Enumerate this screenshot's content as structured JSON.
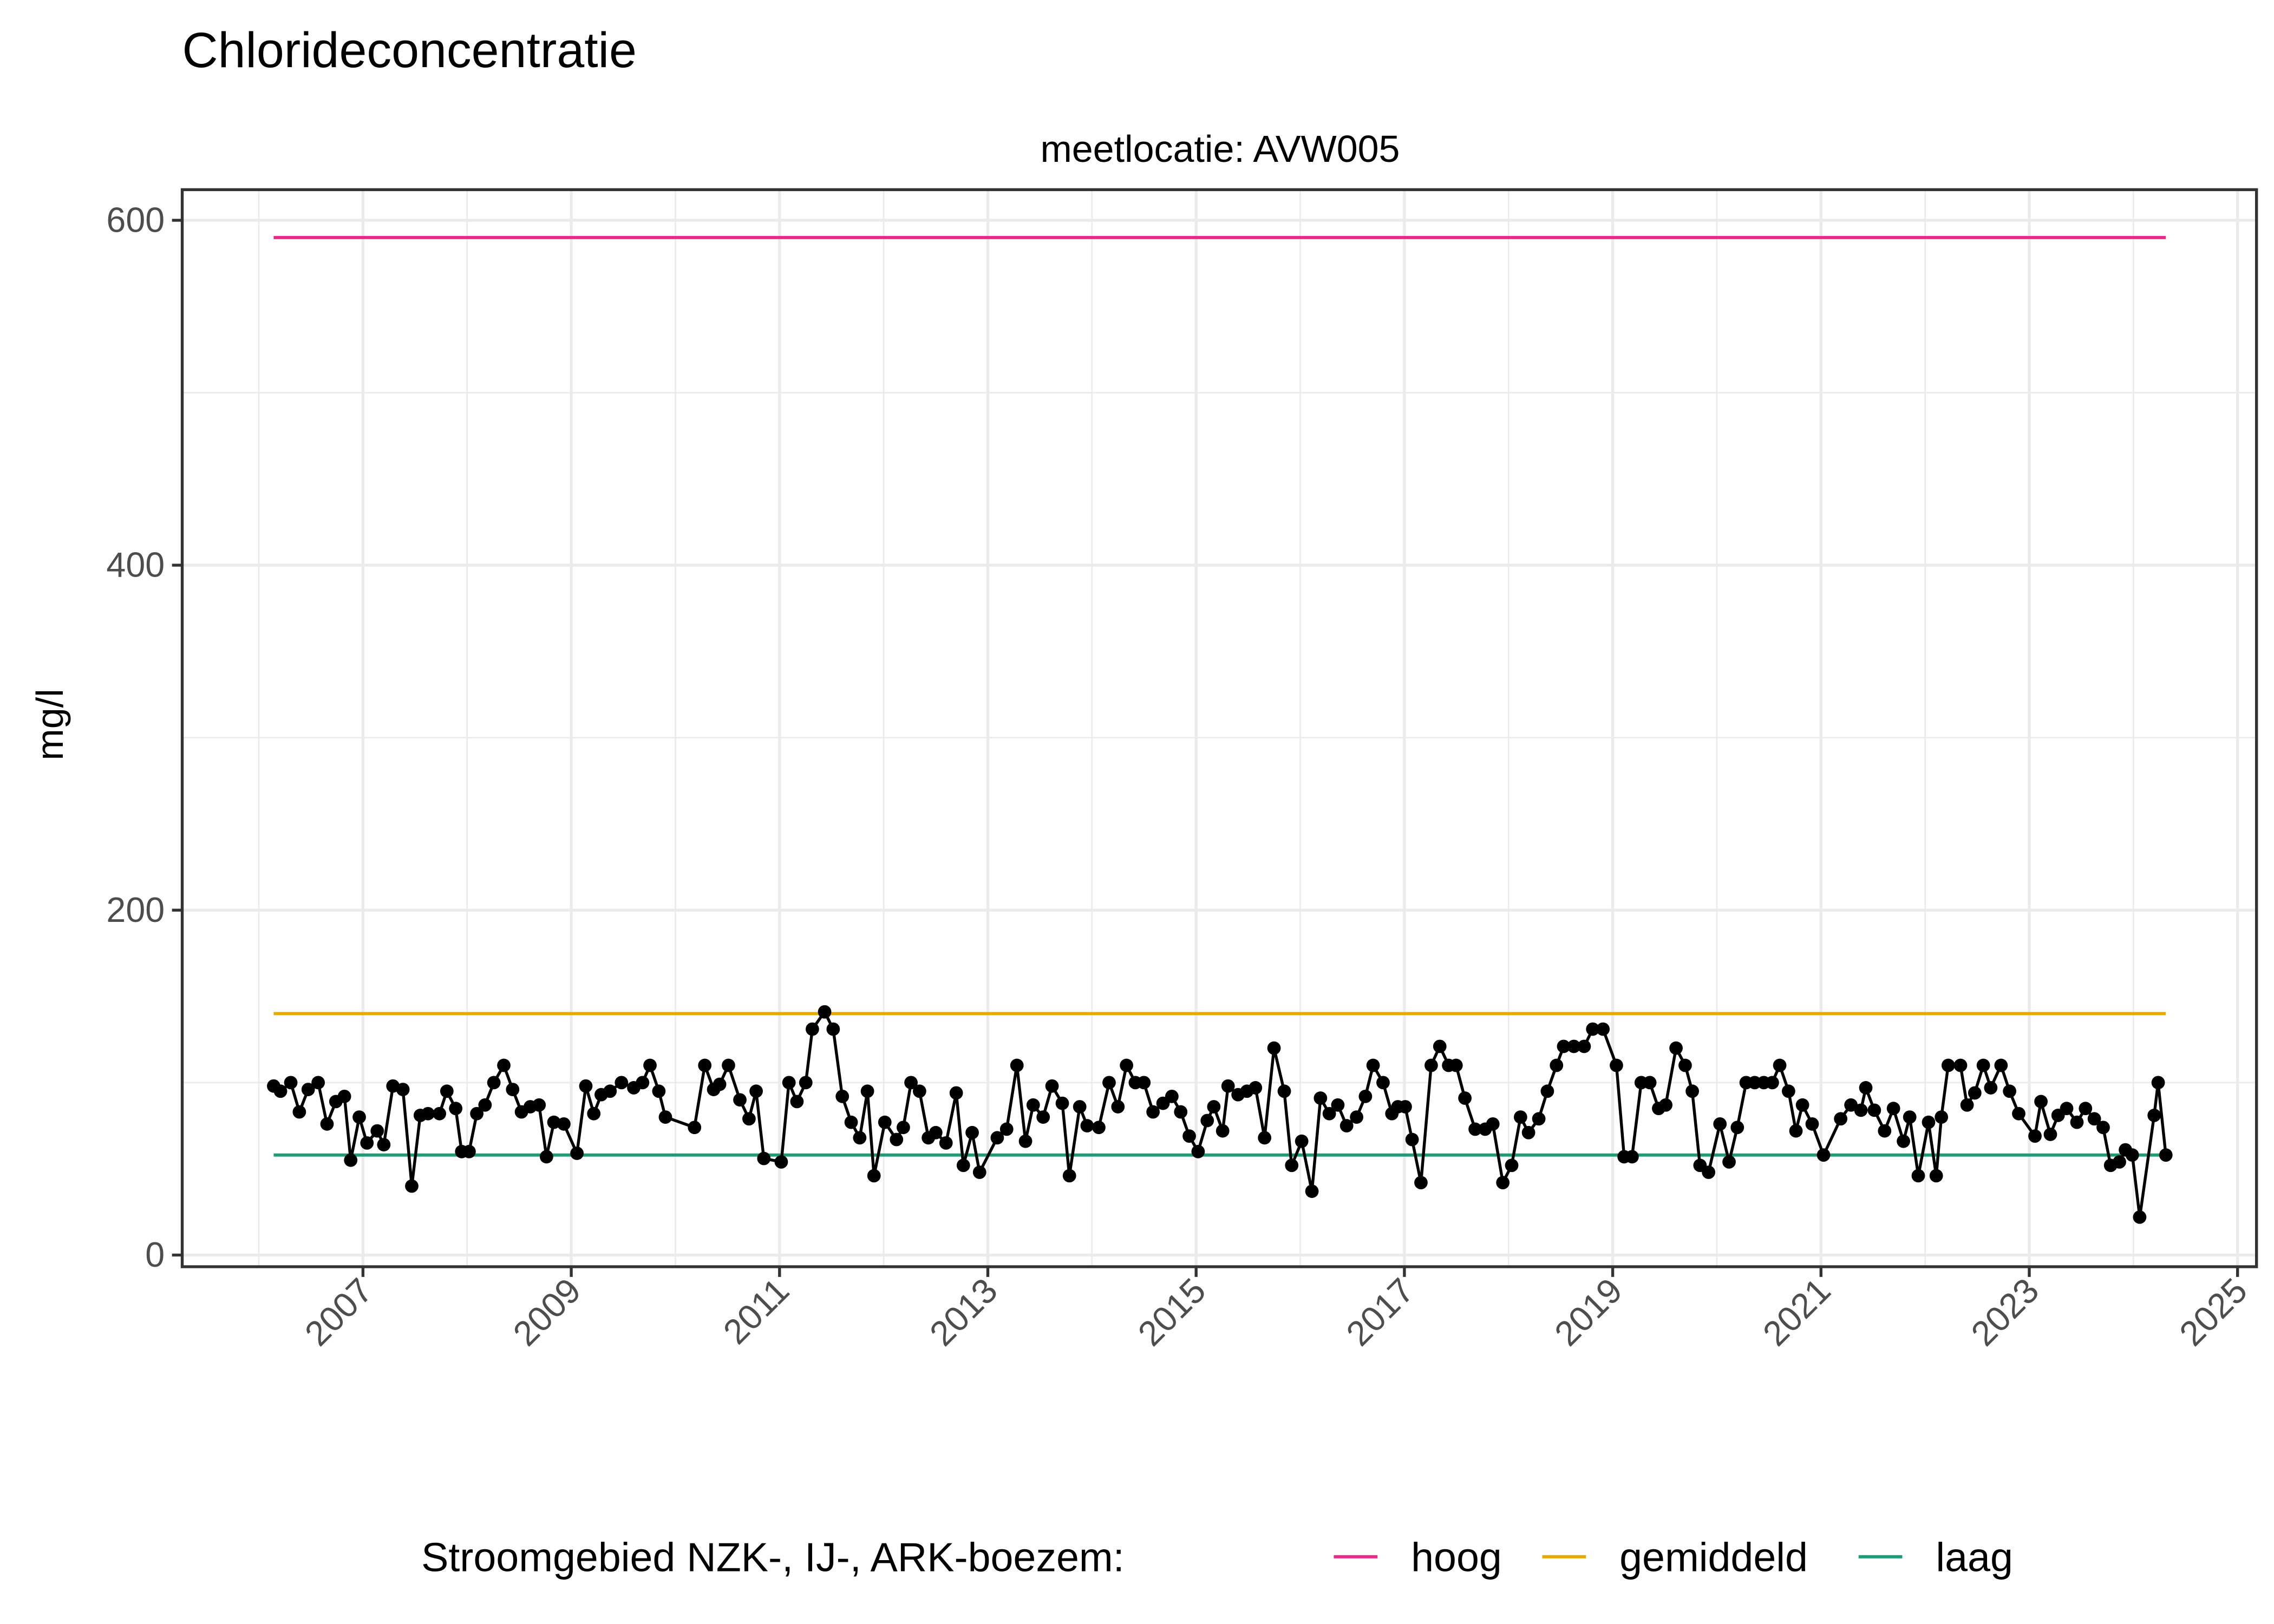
{
  "chart_data": {
    "type": "line",
    "title": "Chlorideconcentratie",
    "facet_label": "meetlocatie: AVW005",
    "xlabel": "",
    "ylabel": "mg/l",
    "ylim": [
      0,
      600
    ],
    "xlim": [
      "2006-01-01",
      "2025-06-01"
    ],
    "yticks": [
      "0",
      "200",
      "400",
      "600"
    ],
    "xticks": [
      "2007",
      "2009",
      "2011",
      "2013",
      "2015",
      "2017",
      "2019",
      "2021",
      "2023",
      "2025"
    ],
    "grid": true,
    "legend_position": "bottom",
    "legend_title": "Stroomgebied NZK-, IJ-, ARK-boezem:",
    "reference_lines": [
      {
        "name": "hoog",
        "value": 590,
        "color": "#e7298a"
      },
      {
        "name": "gemiddeld",
        "value": 140,
        "color": "#e6ab02"
      },
      {
        "name": "laag",
        "value": 58,
        "color": "#1b9e77"
      }
    ],
    "series_color": "#000000",
    "points": [
      [
        "2006-02-22",
        98
      ],
      [
        "2006-03-18",
        95
      ],
      [
        "2006-04-23",
        100
      ],
      [
        "2006-05-23",
        83
      ],
      [
        "2006-06-23",
        96
      ],
      [
        "2006-07-28",
        100
      ],
      [
        "2006-08-28",
        76
      ],
      [
        "2006-09-28",
        89
      ],
      [
        "2006-10-28",
        92
      ],
      [
        "2006-11-19",
        55
      ],
      [
        "2006-12-19",
        80
      ],
      [
        "2007-01-15",
        65
      ],
      [
        "2007-02-20",
        72
      ],
      [
        "2007-03-15",
        64
      ],
      [
        "2007-04-16",
        98
      ],
      [
        "2007-05-21",
        96
      ],
      [
        "2007-06-21",
        40
      ],
      [
        "2007-07-21",
        81
      ],
      [
        "2007-08-17",
        82
      ],
      [
        "2007-09-26",
        82
      ],
      [
        "2007-10-22",
        95
      ],
      [
        "2007-11-22",
        85
      ],
      [
        "2007-12-13",
        60
      ],
      [
        "2008-01-08",
        60
      ],
      [
        "2008-02-04",
        82
      ],
      [
        "2008-03-04",
        87
      ],
      [
        "2008-04-04",
        100
      ],
      [
        "2008-05-09",
        110
      ],
      [
        "2008-06-09",
        96
      ],
      [
        "2008-07-10",
        83
      ],
      [
        "2008-08-10",
        86
      ],
      [
        "2008-09-10",
        87
      ],
      [
        "2008-10-06",
        57
      ],
      [
        "2008-11-01",
        77
      ],
      [
        "2008-12-06",
        76
      ],
      [
        "2009-01-21",
        59
      ],
      [
        "2009-02-21",
        98
      ],
      [
        "2009-03-21",
        82
      ],
      [
        "2009-04-16",
        93
      ],
      [
        "2009-05-17",
        95
      ],
      [
        "2009-06-26",
        100
      ],
      [
        "2009-08-08",
        97
      ],
      [
        "2009-09-08",
        100
      ],
      [
        "2009-10-04",
        110
      ],
      [
        "2009-11-04",
        95
      ],
      [
        "2009-11-27",
        80
      ],
      [
        "2010-03-09",
        74
      ],
      [
        "2010-04-14",
        110
      ],
      [
        "2010-05-15",
        96
      ],
      [
        "2010-06-05",
        99
      ],
      [
        "2010-07-06",
        110
      ],
      [
        "2010-08-15",
        90
      ],
      [
        "2010-09-16",
        79
      ],
      [
        "2010-10-11",
        95
      ],
      [
        "2010-11-07",
        56
      ],
      [
        "2011-01-07",
        54
      ],
      [
        "2011-02-03",
        100
      ],
      [
        "2011-03-03",
        89
      ],
      [
        "2011-04-03",
        100
      ],
      [
        "2011-04-26",
        131
      ],
      [
        "2011-06-08",
        141
      ],
      [
        "2011-07-08",
        131
      ],
      [
        "2011-08-09",
        92
      ],
      [
        "2011-09-09",
        77
      ],
      [
        "2011-10-09",
        68
      ],
      [
        "2011-11-05",
        95
      ],
      [
        "2011-11-28",
        46
      ],
      [
        "2012-01-05",
        77
      ],
      [
        "2012-02-15",
        67
      ],
      [
        "2012-03-10",
        74
      ],
      [
        "2012-04-06",
        100
      ],
      [
        "2012-05-06",
        95
      ],
      [
        "2012-06-06",
        68
      ],
      [
        "2012-07-02",
        71
      ],
      [
        "2012-08-07",
        65
      ],
      [
        "2012-09-12",
        94
      ],
      [
        "2012-10-07",
        52
      ],
      [
        "2012-11-07",
        71
      ],
      [
        "2012-12-03",
        48
      ],
      [
        "2013-02-03",
        68
      ],
      [
        "2013-03-08",
        73
      ],
      [
        "2013-04-13",
        110
      ],
      [
        "2013-05-13",
        66
      ],
      [
        "2013-06-09",
        87
      ],
      [
        "2013-07-14",
        80
      ],
      [
        "2013-08-14",
        98
      ],
      [
        "2013-09-19",
        88
      ],
      [
        "2013-10-14",
        46
      ],
      [
        "2013-11-19",
        86
      ],
      [
        "2013-12-15",
        75
      ],
      [
        "2014-01-25",
        74
      ],
      [
        "2014-03-02",
        100
      ],
      [
        "2014-04-02",
        86
      ],
      [
        "2014-05-02",
        110
      ],
      [
        "2014-06-02",
        100
      ],
      [
        "2014-07-02",
        100
      ],
      [
        "2014-08-03",
        83
      ],
      [
        "2014-09-07",
        88
      ],
      [
        "2014-10-08",
        92
      ],
      [
        "2014-11-08",
        83
      ],
      [
        "2014-12-08",
        69
      ],
      [
        "2015-01-08",
        60
      ],
      [
        "2015-02-09",
        78
      ],
      [
        "2015-03-04",
        86
      ],
      [
        "2015-04-04",
        72
      ],
      [
        "2015-04-23",
        98
      ],
      [
        "2015-05-28",
        93
      ],
      [
        "2015-06-28",
        95
      ],
      [
        "2015-07-28",
        97
      ],
      [
        "2015-08-29",
        68
      ],
      [
        "2015-10-01",
        120
      ],
      [
        "2015-11-06",
        95
      ],
      [
        "2015-12-02",
        52
      ],
      [
        "2016-01-06",
        66
      ],
      [
        "2016-02-11",
        37
      ],
      [
        "2016-03-12",
        91
      ],
      [
        "2016-04-12",
        82
      ],
      [
        "2016-05-12",
        87
      ],
      [
        "2016-06-12",
        75
      ],
      [
        "2016-07-17",
        80
      ],
      [
        "2016-08-17",
        92
      ],
      [
        "2016-09-13",
        110
      ],
      [
        "2016-10-18",
        100
      ],
      [
        "2016-11-18",
        82
      ],
      [
        "2016-12-09",
        86
      ],
      [
        "2017-01-04",
        86
      ],
      [
        "2017-01-28",
        67
      ],
      [
        "2017-02-28",
        42
      ],
      [
        "2017-04-05",
        110
      ],
      [
        "2017-05-05",
        121
      ],
      [
        "2017-06-05",
        110
      ],
      [
        "2017-07-01",
        110
      ],
      [
        "2017-08-01",
        91
      ],
      [
        "2017-09-06",
        73
      ],
      [
        "2017-10-11",
        73
      ],
      [
        "2017-11-07",
        76
      ],
      [
        "2017-12-12",
        42
      ],
      [
        "2018-01-12",
        52
      ],
      [
        "2018-02-12",
        80
      ],
      [
        "2018-03-12",
        71
      ],
      [
        "2018-04-17",
        79
      ],
      [
        "2018-05-17",
        95
      ],
      [
        "2018-06-18",
        110
      ],
      [
        "2018-07-13",
        121
      ],
      [
        "2018-08-18",
        121
      ],
      [
        "2018-09-23",
        121
      ],
      [
        "2018-10-23",
        131
      ],
      [
        "2018-11-28",
        131
      ],
      [
        "2019-01-14",
        110
      ],
      [
        "2019-02-10",
        57
      ],
      [
        "2019-03-10",
        57
      ],
      [
        "2019-04-11",
        100
      ],
      [
        "2019-05-11",
        100
      ],
      [
        "2019-06-11",
        85
      ],
      [
        "2019-07-06",
        87
      ],
      [
        "2019-08-11",
        120
      ],
      [
        "2019-09-12",
        110
      ],
      [
        "2019-10-07",
        95
      ],
      [
        "2019-11-03",
        52
      ],
      [
        "2019-12-03",
        48
      ],
      [
        "2020-01-12",
        76
      ],
      [
        "2020-02-13",
        54
      ],
      [
        "2020-03-13",
        74
      ],
      [
        "2020-04-13",
        100
      ],
      [
        "2020-05-13",
        100
      ],
      [
        "2020-06-14",
        100
      ],
      [
        "2020-07-14",
        100
      ],
      [
        "2020-08-09",
        110
      ],
      [
        "2020-09-09",
        95
      ],
      [
        "2020-10-05",
        72
      ],
      [
        "2020-10-28",
        87
      ],
      [
        "2020-12-01",
        76
      ],
      [
        "2021-01-10",
        58
      ],
      [
        "2021-03-11",
        79
      ],
      [
        "2021-04-16",
        87
      ],
      [
        "2021-05-21",
        84
      ],
      [
        "2021-06-07",
        97
      ],
      [
        "2021-07-07",
        84
      ],
      [
        "2021-08-12",
        72
      ],
      [
        "2021-09-12",
        85
      ],
      [
        "2021-10-17",
        66
      ],
      [
        "2021-11-08",
        80
      ],
      [
        "2021-12-08",
        46
      ],
      [
        "2022-01-13",
        77
      ],
      [
        "2022-02-09",
        46
      ],
      [
        "2022-02-27",
        80
      ],
      [
        "2022-03-23",
        110
      ],
      [
        "2022-05-05",
        110
      ],
      [
        "2022-05-28",
        87
      ],
      [
        "2022-06-24",
        94
      ],
      [
        "2022-07-24",
        110
      ],
      [
        "2022-08-19",
        97
      ],
      [
        "2022-09-24",
        110
      ],
      [
        "2022-10-24",
        95
      ],
      [
        "2022-11-25",
        82
      ],
      [
        "2023-01-21",
        69
      ],
      [
        "2023-02-11",
        89
      ],
      [
        "2023-03-16",
        70
      ],
      [
        "2023-04-12",
        81
      ],
      [
        "2023-05-12",
        85
      ],
      [
        "2023-06-17",
        77
      ],
      [
        "2023-07-17",
        85
      ],
      [
        "2023-08-17",
        79
      ],
      [
        "2023-09-17",
        74
      ],
      [
        "2023-10-13",
        52
      ],
      [
        "2023-11-13",
        54
      ],
      [
        "2023-12-04",
        61
      ],
      [
        "2023-12-28",
        58
      ],
      [
        "2024-01-23",
        22
      ],
      [
        "2024-03-14",
        81
      ],
      [
        "2024-03-28",
        100
      ],
      [
        "2024-04-24",
        58
      ]
    ]
  }
}
